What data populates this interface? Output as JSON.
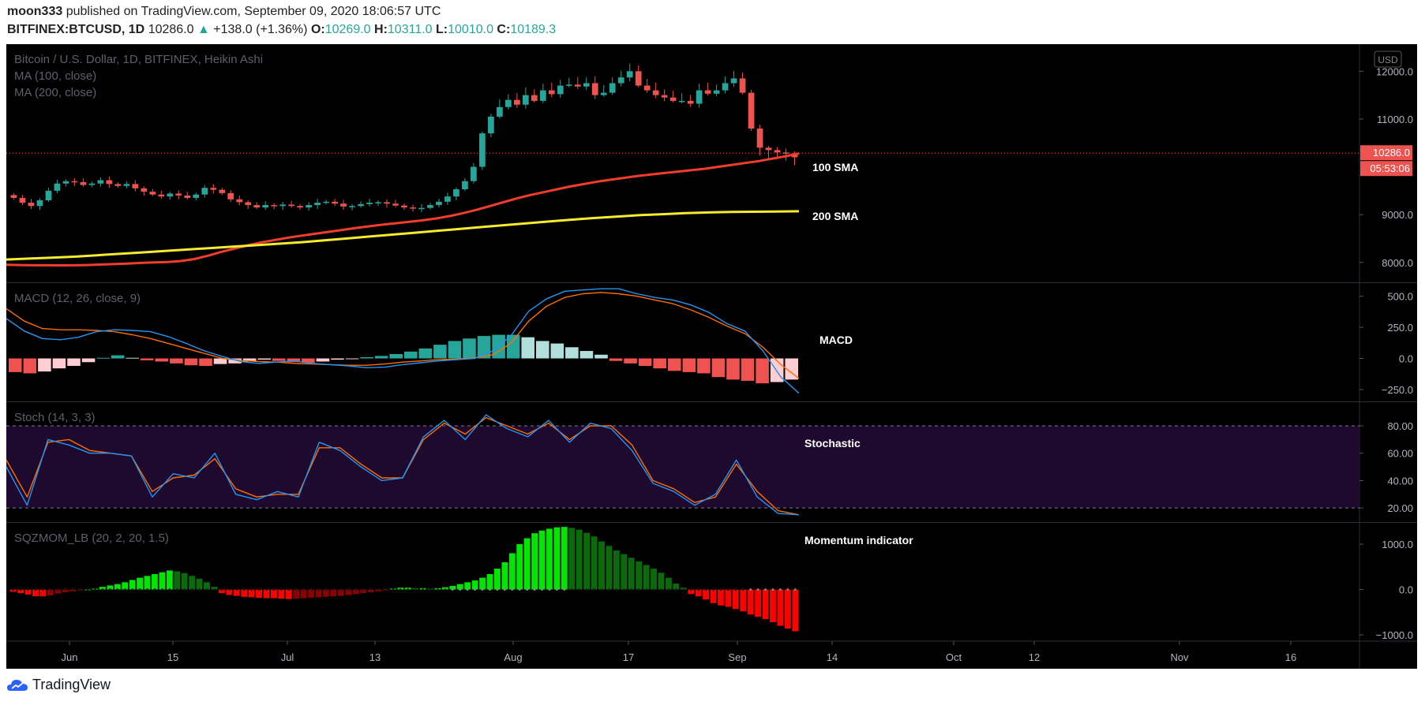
{
  "header": {
    "author": "moon333",
    "published_text": "published on TradingView.com, September 09, 2020 18:06:57 UTC",
    "symbol": "BITFINEX:BTCUSD, 1D",
    "last": "10286.0",
    "change_arrow": "▲",
    "change": "+138.0 (+1.36%)",
    "o_label": "O:",
    "o": "10269.0",
    "h_label": "H:",
    "h": "10311.0",
    "l_label": "L:",
    "l": "10010.0",
    "c_label": "C:",
    "c": "10189.3"
  },
  "footer": {
    "brand": "TradingView"
  },
  "colors": {
    "bull": "#26a69a",
    "bear": "#ef5350",
    "sma100": "#f23c2c",
    "sma200": "#f5ec2e",
    "macd": "#2196f3",
    "signal": "#ff6d00",
    "stoch_k": "#2196f3",
    "stoch_d": "#ff6d00",
    "stoch_band": "#1e0a2e",
    "mom_pos_strong": "#00e600",
    "mom_pos_weak": "#0b6b0b",
    "mom_neg_strong": "#ff0000",
    "mom_neg_weak": "#8b0000"
  },
  "chart_data": [
    {
      "type": "candlestick",
      "title": "Bitcoin / U.S. Dollar, 1D, BITFINEX, Heikin Ashi",
      "legend": [
        "MA (100, close)",
        "MA (200, close)"
      ],
      "currency_badge": "USD",
      "y_ticks": [
        "12000.0",
        "11000.0",
        "9000.0",
        "8000.0"
      ],
      "ylim": [
        7650,
        12500
      ],
      "price_label": "10286.0",
      "countdown_label": "05:53:06",
      "annotations": [
        "100 SMA",
        "200 SMA"
      ],
      "close_series": [
        9350,
        9250,
        9180,
        9300,
        9500,
        9650,
        9700,
        9680,
        9620,
        9650,
        9720,
        9640,
        9600,
        9640,
        9550,
        9480,
        9420,
        9380,
        9440,
        9400,
        9350,
        9420,
        9560,
        9520,
        9450,
        9320,
        9260,
        9200,
        9150,
        9200,
        9180,
        9210,
        9180,
        9150,
        9200,
        9250,
        9270,
        9230,
        9170,
        9180,
        9220,
        9250,
        9260,
        9230,
        9190,
        9150,
        9130,
        9140,
        9200,
        9270,
        9380,
        9530,
        9700,
        10000,
        10700,
        11050,
        11250,
        11400,
        11300,
        11500,
        11380,
        11600,
        11520,
        11700,
        11720,
        11680,
        11750,
        11500,
        11550,
        11750,
        11870,
        12000,
        11700,
        11600,
        11500,
        11450,
        11380,
        11380,
        11320,
        11600,
        11530,
        11600,
        11750,
        11850,
        11550,
        10800,
        10400,
        10350,
        10300,
        10280,
        10200
      ],
      "sma100": [
        7950,
        7945,
        7940,
        7940,
        7938,
        7940,
        7945,
        7955,
        7965,
        7975,
        7990,
        8000,
        8010,
        8030,
        8070,
        8140,
        8220,
        8290,
        8360,
        8420,
        8470,
        8520,
        8560,
        8600,
        8640,
        8680,
        8720,
        8755,
        8790,
        8820,
        8850,
        8880,
        8920,
        8970,
        9030,
        9100,
        9180,
        9260,
        9340,
        9410,
        9470,
        9530,
        9590,
        9640,
        9690,
        9730,
        9770,
        9810,
        9840,
        9870,
        9900,
        9930,
        9960,
        10000,
        10040,
        10080,
        10120,
        10170,
        10220,
        10280
      ],
      "sma200": [
        8060,
        8080,
        8100,
        8120,
        8150,
        8180,
        8210,
        8240,
        8270,
        8300,
        8330,
        8360,
        8390,
        8420,
        8460,
        8500,
        8540,
        8580,
        8620,
        8660,
        8700,
        8740,
        8780,
        8820,
        8860,
        8895,
        8930,
        8960,
        8990,
        9010,
        9030,
        9045,
        9055,
        9060,
        9065,
        9070
      ]
    },
    {
      "type": "macd",
      "title": "MACD (12, 26, close, 9)",
      "y_ticks": [
        "500.0",
        "250.0",
        "0.0",
        "−250.0"
      ],
      "ylim": [
        -320,
        580
      ],
      "annotation": "MACD",
      "macd": [
        320,
        220,
        160,
        150,
        170,
        215,
        230,
        225,
        215,
        175,
        120,
        60,
        15,
        -25,
        -40,
        -30,
        -20,
        -40,
        -50,
        -60,
        -75,
        -70,
        -50,
        -35,
        -20,
        -10,
        0,
        60,
        180,
        380,
        480,
        540,
        550,
        560,
        560,
        520,
        490,
        470,
        430,
        370,
        280,
        220,
        60,
        -150,
        -280
      ],
      "signal": [
        400,
        300,
        240,
        230,
        230,
        225,
        215,
        190,
        160,
        120,
        80,
        40,
        0,
        -15,
        -25,
        -30,
        -40,
        -45,
        -50,
        -55,
        -55,
        -45,
        -30,
        -20,
        -10,
        -5,
        5,
        30,
        120,
        300,
        420,
        490,
        520,
        530,
        520,
        500,
        470,
        440,
        390,
        330,
        260,
        200,
        90,
        -50,
        -160
      ],
      "hist": [
        -110,
        -120,
        -105,
        -80,
        -60,
        -30,
        5,
        25,
        5,
        -15,
        -25,
        -40,
        -55,
        -60,
        -45,
        -40,
        -25,
        -10,
        -20,
        -30,
        -35,
        -25,
        -10,
        -5,
        10,
        20,
        35,
        55,
        80,
        110,
        140,
        160,
        180,
        190,
        190,
        170,
        140,
        120,
        90,
        60,
        30,
        -20,
        -40,
        -60,
        -80,
        -100,
        -110,
        -120,
        -150,
        -170,
        -180,
        -200,
        -190,
        -170
      ]
    },
    {
      "type": "stochastic",
      "title": "Stoch (14, 3, 3)",
      "y_ticks": [
        "80.00",
        "60.00",
        "40.00",
        "20.00"
      ],
      "ylim": [
        12,
        95
      ],
      "annotation": "Stochastic",
      "k": [
        50,
        22,
        70,
        66,
        60,
        60,
        58,
        28,
        45,
        42,
        60,
        30,
        26,
        32,
        28,
        68,
        62,
        50,
        40,
        42,
        72,
        84,
        70,
        88,
        78,
        72,
        84,
        68,
        82,
        78,
        62,
        38,
        32,
        22,
        30,
        55,
        28,
        16,
        15
      ],
      "d": [
        55,
        28,
        68,
        70,
        62,
        60,
        58,
        32,
        42,
        44,
        56,
        34,
        28,
        30,
        30,
        64,
        64,
        52,
        42,
        42,
        70,
        82,
        74,
        86,
        80,
        74,
        82,
        70,
        80,
        80,
        66,
        40,
        34,
        24,
        28,
        52,
        32,
        18,
        15
      ]
    },
    {
      "type": "bar",
      "title": "SQZMOM_LB (20, 2, 20, 1.5)",
      "y_ticks": [
        "1000.0",
        "0.0",
        "−1000.0"
      ],
      "ylim": [
        -1050,
        1400
      ],
      "annotation": "Momentum indicator",
      "values": [
        -50,
        -80,
        -110,
        -150,
        -150,
        -130,
        -90,
        -60,
        -40,
        -20,
        0,
        20,
        60,
        90,
        120,
        160,
        210,
        260,
        300,
        340,
        380,
        420,
        400,
        360,
        300,
        240,
        160,
        60,
        -80,
        -120,
        -140,
        -160,
        -170,
        -180,
        -190,
        -190,
        -200,
        -210,
        -200,
        -190,
        -180,
        -170,
        -160,
        -150,
        -140,
        -120,
        -100,
        -80,
        -60,
        -40,
        -20,
        20,
        40,
        40,
        30,
        30,
        20,
        30,
        50,
        80,
        120,
        160,
        200,
        260,
        340,
        460,
        600,
        800,
        1000,
        1130,
        1240,
        1300,
        1340,
        1370,
        1380,
        1360,
        1320,
        1250,
        1170,
        1060,
        960,
        860,
        780,
        700,
        620,
        540,
        460,
        370,
        260,
        130,
        40,
        -100,
        -150,
        -220,
        -300,
        -350,
        -380,
        -430,
        -480,
        -550,
        -600,
        -650,
        -720,
        -800,
        -860,
        -920
      ]
    }
  ],
  "x_axis": [
    "Jun",
    "15",
    "Jul",
    "13",
    "Aug",
    "17",
    "Sep",
    "14",
    "Oct",
    "12",
    "Nov",
    "16"
  ]
}
